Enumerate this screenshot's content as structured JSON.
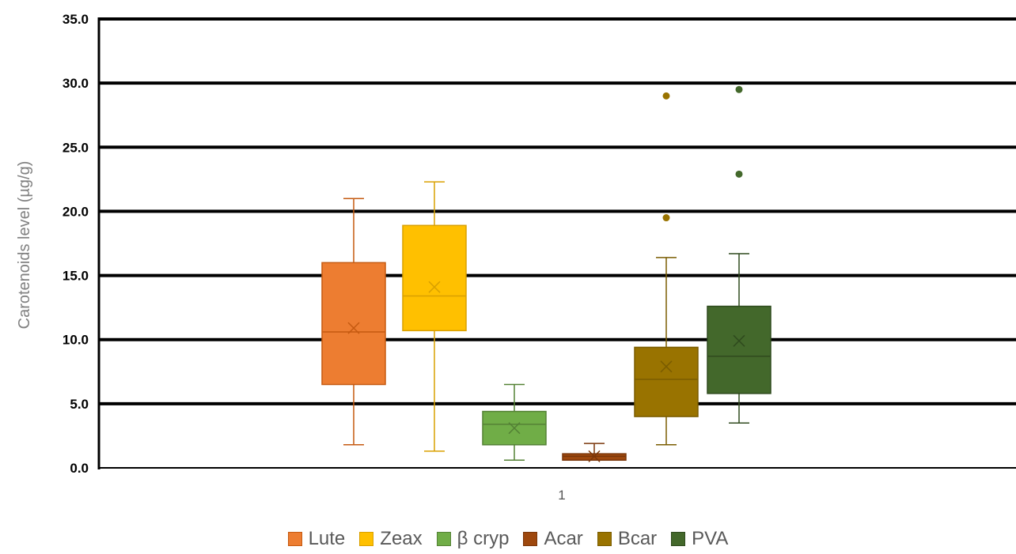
{
  "chart_data": {
    "type": "box",
    "title": "",
    "ylabel": "Carotenoids level (µg/g)",
    "xlabel": "",
    "categories": [
      "1"
    ],
    "ylim": [
      0,
      35
    ],
    "yticks": [
      "0.0",
      "5.0",
      "10.0",
      "15.0",
      "20.0",
      "25.0",
      "30.0",
      "35.0"
    ],
    "grid": true,
    "legend_position": "bottom",
    "series": [
      {
        "name": "Lute",
        "color": "#ED7D31",
        "edge": "#C55A11",
        "min": 1.8,
        "q1": 6.5,
        "median": 10.6,
        "q3": 16.0,
        "max": 21.0,
        "mean": 10.9,
        "outliers": []
      },
      {
        "name": "Zeax",
        "color": "#FFC000",
        "edge": "#D9A000",
        "min": 1.3,
        "q1": 10.7,
        "median": 13.4,
        "q3": 18.9,
        "max": 22.3,
        "mean": 14.1,
        "outliers": []
      },
      {
        "name": "β cryp",
        "color": "#70AD47",
        "edge": "#548235",
        "min": 0.6,
        "q1": 1.8,
        "median": 3.4,
        "q3": 4.4,
        "max": 6.5,
        "mean": 3.1,
        "outliers": []
      },
      {
        "name": "Acar",
        "color": "#9E480E",
        "edge": "#7A360A",
        "min": 0.6,
        "q1": 0.6,
        "median": 0.9,
        "q3": 1.1,
        "max": 1.9,
        "mean": 0.9,
        "outliers": []
      },
      {
        "name": "Bcar",
        "color": "#997300",
        "edge": "#7A5C00",
        "min": 1.8,
        "q1": 4.0,
        "median": 6.9,
        "q3": 9.4,
        "max": 16.4,
        "mean": 7.9,
        "outliers": [
          19.5,
          29.0
        ]
      },
      {
        "name": "PVA",
        "color": "#43682B",
        "edge": "#2F4A1E",
        "min": 3.5,
        "q1": 5.8,
        "median": 8.7,
        "q3": 12.6,
        "max": 16.7,
        "mean": 9.9,
        "outliers": [
          22.9,
          29.5
        ]
      }
    ]
  }
}
